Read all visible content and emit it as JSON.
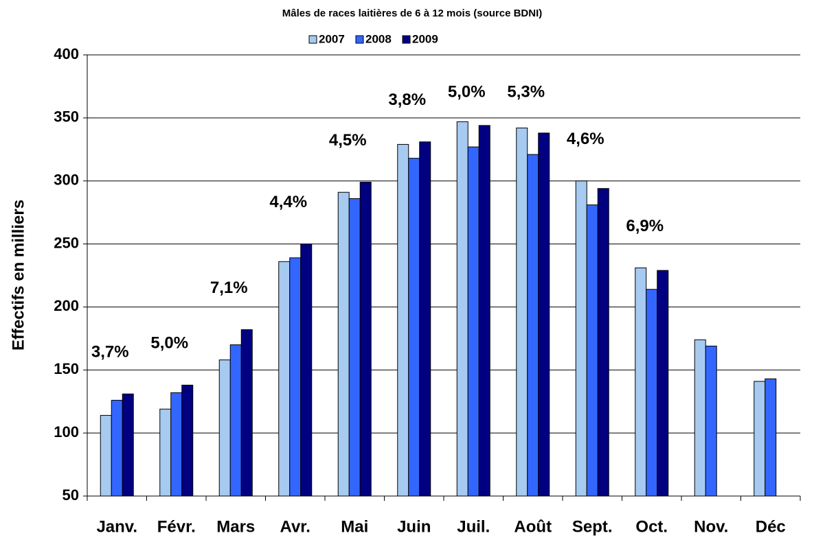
{
  "chart_data": {
    "type": "bar",
    "title": "Mâles de races laitières de 6 à 12 mois (source BDNI)",
    "ylabel": "Effectifs en milliers",
    "categories": [
      "Janv.",
      "Févr.",
      "Mars",
      "Avr.",
      "Mai",
      "Juin",
      "Juil.",
      "Août",
      "Sept.",
      "Oct.",
      "Nov.",
      "Déc"
    ],
    "series": [
      {
        "name": "2007",
        "color": "#a6caf0",
        "values": [
          114,
          119,
          158,
          236,
          291,
          329,
          347,
          342,
          300,
          231,
          174,
          141
        ]
      },
      {
        "name": "2008",
        "color": "#3366ff",
        "values": [
          126,
          132,
          170,
          239,
          286,
          318,
          327,
          321,
          281,
          214,
          169,
          143
        ]
      },
      {
        "name": "2009",
        "color": "#000080",
        "values": [
          131,
          138,
          182,
          250,
          299,
          331,
          344,
          338,
          294,
          229,
          null,
          null
        ]
      }
    ],
    "annotations": [
      "3,7%",
      "5,0%",
      "7,1%",
      "4,4%",
      "4,5%",
      "3,8%",
      "5,0%",
      "5,3%",
      "4,6%",
      "6,9%",
      null,
      null
    ],
    "ylim": [
      50,
      400
    ],
    "yticks": [
      50,
      100,
      150,
      200,
      250,
      300,
      350,
      400
    ],
    "grid": true
  }
}
